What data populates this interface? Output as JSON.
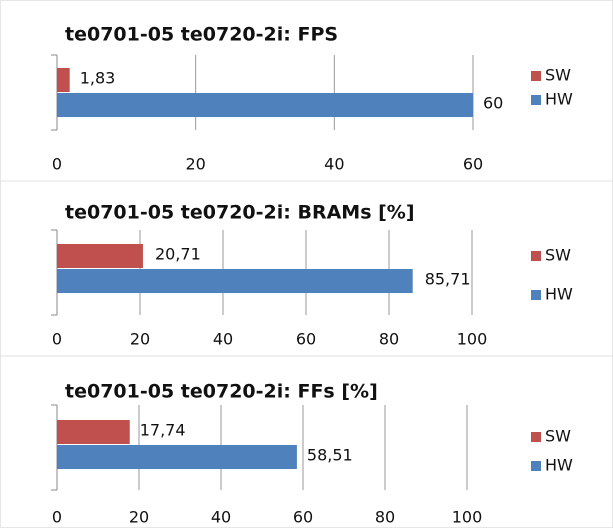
{
  "chart_data": [
    {
      "type": "bar",
      "orientation": "horizontal",
      "title": "te0701-05 te0720-2i: FPS",
      "series": [
        {
          "name": "SW",
          "color": "#c0504d",
          "values": [
            1.83
          ],
          "value_labels": [
            "1,83"
          ]
        },
        {
          "name": "HW",
          "color": "#4f81bd",
          "values": [
            60
          ],
          "value_labels": [
            "60"
          ]
        }
      ],
      "xlim": [
        0,
        60
      ],
      "xticks": [
        0,
        20,
        40,
        60
      ],
      "grid": true,
      "legend": "right"
    },
    {
      "type": "bar",
      "orientation": "horizontal",
      "title": "te0701-05 te0720-2i: BRAMs [%]",
      "series": [
        {
          "name": "SW",
          "color": "#c0504d",
          "values": [
            20.71
          ],
          "value_labels": [
            "20,71"
          ]
        },
        {
          "name": "HW",
          "color": "#4f81bd",
          "values": [
            85.71
          ],
          "value_labels": [
            "85,71"
          ]
        }
      ],
      "xlim": [
        0,
        100
      ],
      "xticks": [
        0,
        20,
        40,
        60,
        80,
        100
      ],
      "grid": true,
      "legend": "right"
    },
    {
      "type": "bar",
      "orientation": "horizontal",
      "title": "te0701-05 te0720-2i: FFs [%]",
      "series": [
        {
          "name": "SW",
          "color": "#c0504d",
          "values": [
            17.74
          ],
          "value_labels": [
            "17,74"
          ]
        },
        {
          "name": "HW",
          "color": "#4f81bd",
          "values": [
            58.51
          ],
          "value_labels": [
            "58,51"
          ]
        }
      ],
      "xlim": [
        0,
        100
      ],
      "xticks": [
        0,
        20,
        40,
        60,
        80,
        100
      ],
      "grid": true,
      "legend": "right"
    }
  ]
}
